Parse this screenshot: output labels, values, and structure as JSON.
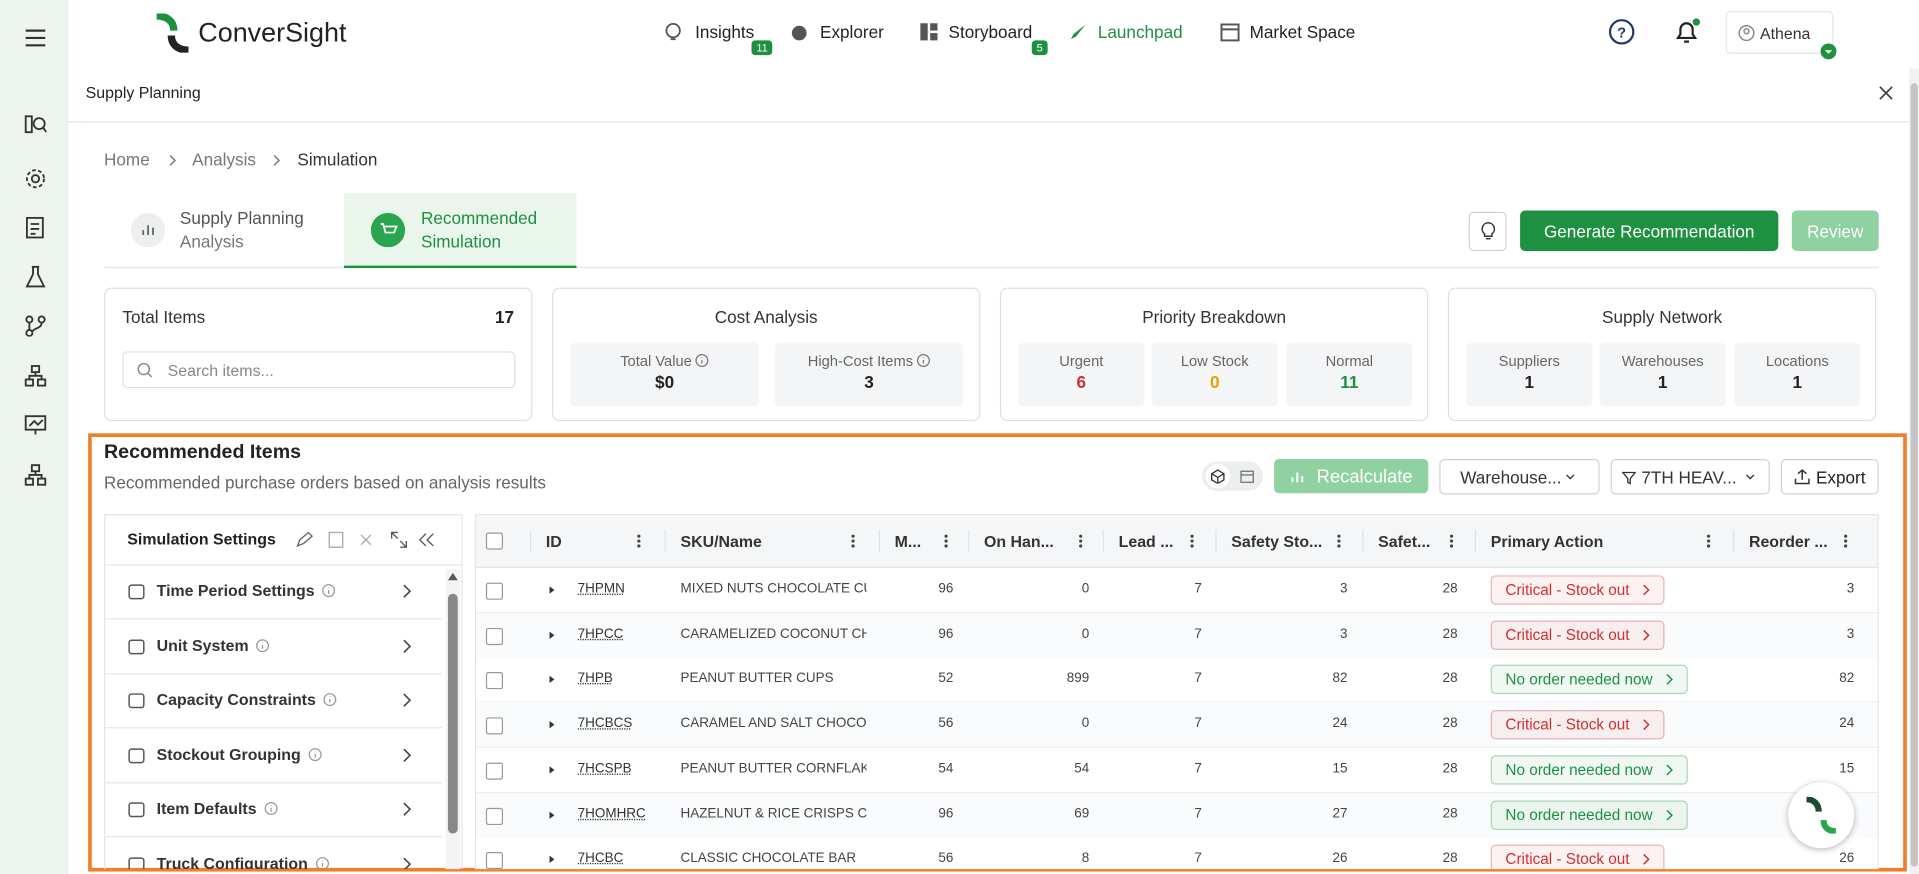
{
  "nav": {
    "logo": "ConverSight",
    "items": [
      {
        "label": "Insights",
        "badge": "11"
      },
      {
        "label": "Explorer"
      },
      {
        "label": "Storyboard",
        "badge": "5"
      },
      {
        "label": "Launchpad"
      },
      {
        "label": "Market Space"
      }
    ],
    "user": "Athena"
  },
  "page_title": "Supply Planning",
  "breadcrumb": [
    "Home",
    "Analysis",
    "Simulation"
  ],
  "tabs": [
    {
      "title": "Supply Planning",
      "subtitle": "Analysis"
    },
    {
      "title": "Recommended",
      "subtitle": "Simulation"
    }
  ],
  "actions": {
    "generate": "Generate Recommendation",
    "review": "Review"
  },
  "cards": {
    "total": {
      "title": "Total Items",
      "value": 17,
      "search_placeholder": "Search items..."
    },
    "cost": {
      "title": "Cost Analysis",
      "stats": [
        {
          "label": "Total Value",
          "value": "$0"
        },
        {
          "label": "High-Cost Items",
          "value": 3
        }
      ]
    },
    "priority": {
      "title": "Priority Breakdown",
      "stats": [
        {
          "label": "Urgent",
          "value": 6,
          "color": "#d32f2f"
        },
        {
          "label": "Low Stock",
          "value": 0,
          "color": "#e0a100"
        },
        {
          "label": "Normal",
          "value": 11,
          "color": "#1e9140"
        }
      ]
    },
    "network": {
      "title": "Supply Network",
      "stats": [
        {
          "label": "Suppliers",
          "value": 1
        },
        {
          "label": "Warehouses",
          "value": 1
        },
        {
          "label": "Locations",
          "value": 1
        }
      ]
    }
  },
  "section": {
    "title": "Recommended Items",
    "subtitle": "Recommended purchase orders based on analysis results"
  },
  "toolbar": {
    "recalculate": "Recalculate",
    "warehouse_filter": "Warehouse...",
    "location_filter": "7TH HEAV...",
    "export": "Export"
  },
  "settings": {
    "title": "Simulation Settings",
    "items": [
      "Time Period Settings",
      "Unit System",
      "Capacity Constraints",
      "Stockout Grouping",
      "Item Defaults",
      "Truck Configuration"
    ]
  },
  "table": {
    "columns": [
      "ID",
      "SKU/Name",
      "M...",
      "On Han...",
      "Lead ...",
      "Safety Sto...",
      "Safet...",
      "Primary Action",
      "Reorder ..."
    ],
    "rows": [
      [
        "7HPMN",
        "MIXED NUTS CHOCOLATE CU",
        96,
        0,
        7,
        3,
        28,
        {
          "label": "Critical - Stock out",
          "color": "#d32f2f"
        },
        3
      ],
      [
        "7HPCC",
        "CARAMELIZED COCONUT CH",
        96,
        0,
        7,
        3,
        28,
        {
          "label": "Critical - Stock out",
          "color": "#d32f2f"
        },
        3
      ],
      [
        "7HPB",
        "PEANUT BUTTER CUPS",
        52,
        899,
        7,
        82,
        28,
        {
          "label": "No order needed now",
          "color": "#1e9140"
        },
        82
      ],
      [
        "7HCBCS",
        "CARAMEL AND SALT CHOCO",
        56,
        0,
        7,
        24,
        28,
        {
          "label": "Critical - Stock out",
          "color": "#d32f2f"
        },
        24
      ],
      [
        "7HCSPB",
        "PEANUT BUTTER CORNFLAK",
        54,
        54,
        7,
        15,
        28,
        {
          "label": "No order needed now",
          "color": "#1e9140"
        },
        15
      ],
      [
        "7HOMHRC",
        "HAZELNUT & RICE CRISPS CI",
        96,
        69,
        7,
        27,
        28,
        {
          "label": "No order needed now",
          "color": "#1e9140"
        },
        null
      ],
      [
        "7HCBC",
        "CLASSIC CHOCOLATE BAR",
        56,
        8,
        7,
        26,
        28,
        {
          "label": "Critical - Stock out",
          "color": "#d32f2f"
        },
        26
      ]
    ]
  }
}
